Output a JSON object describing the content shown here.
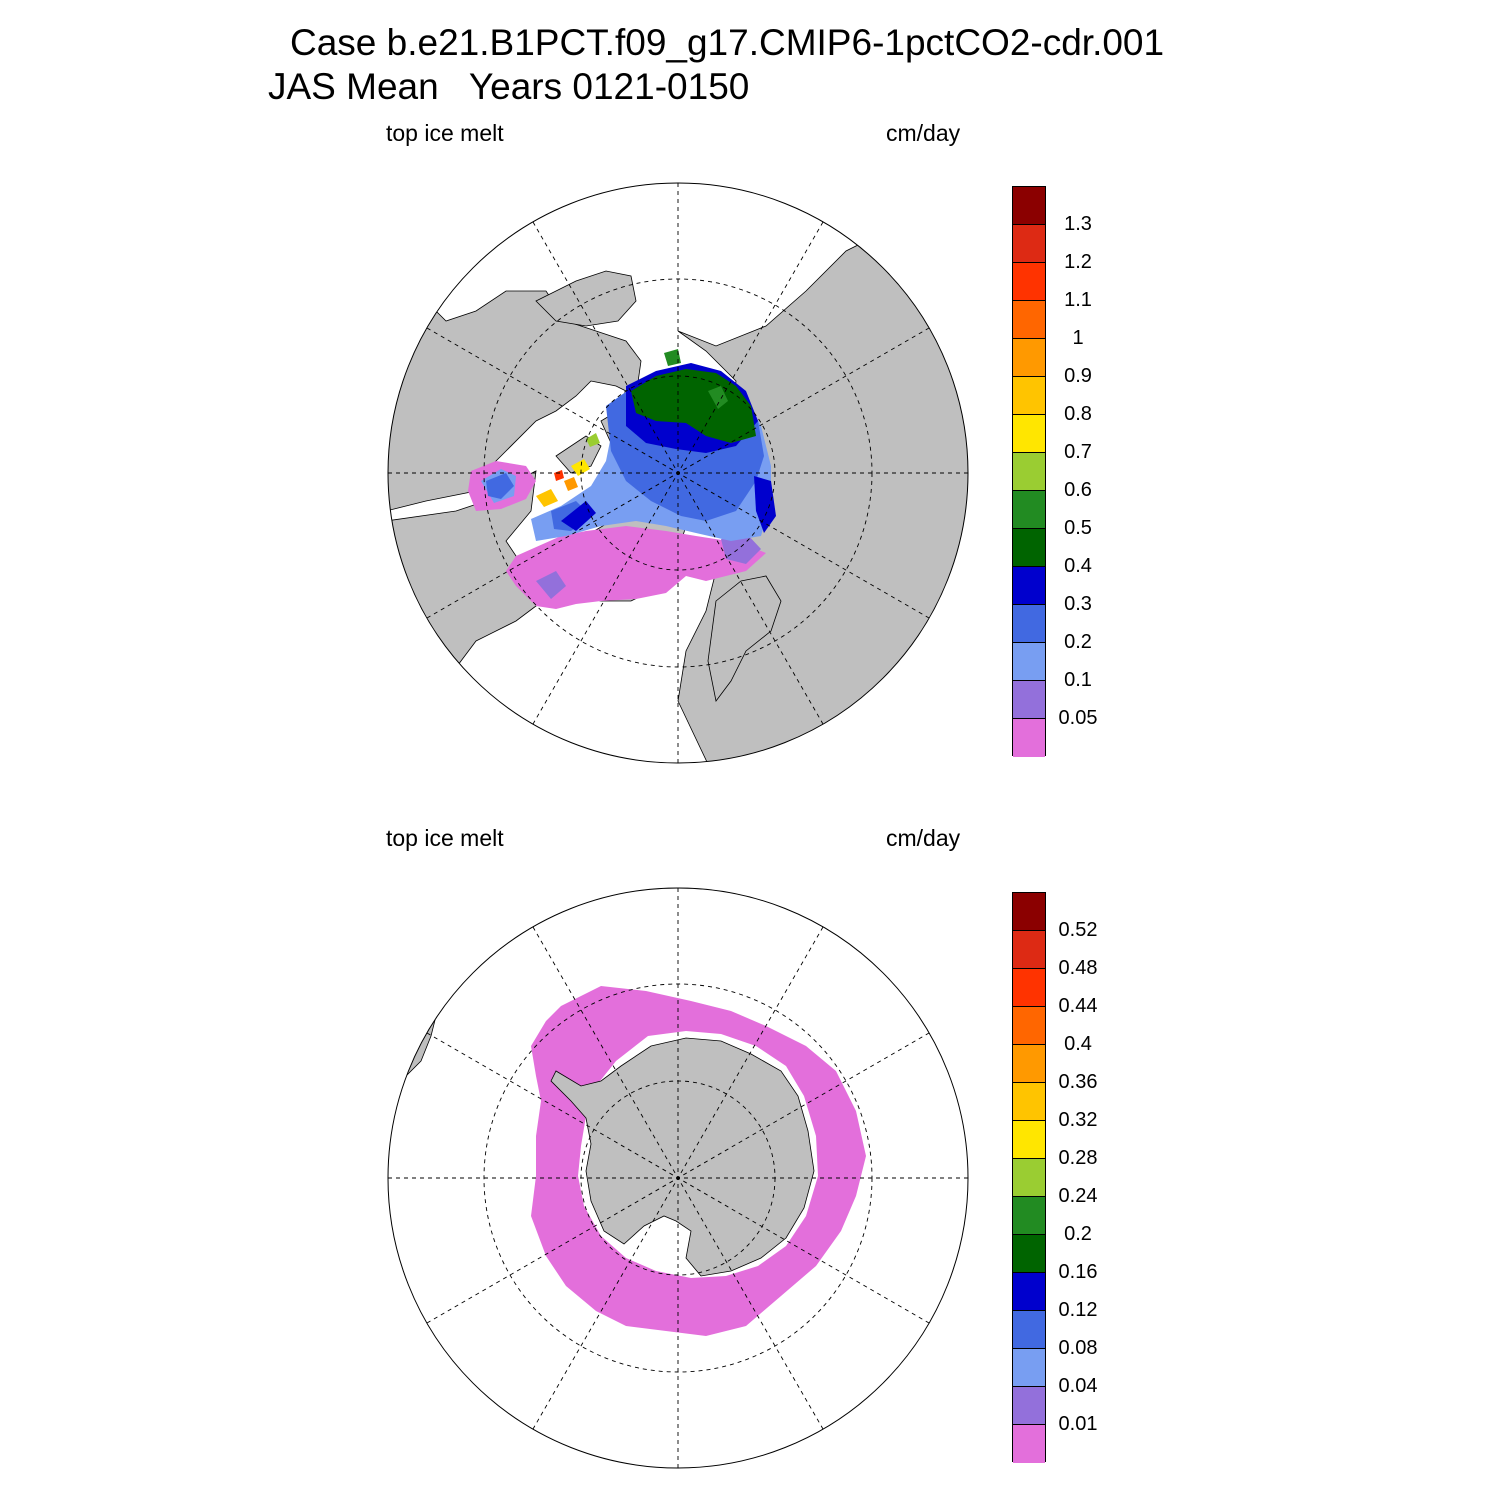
{
  "title_line1": "Case b.e21.B1PCT.f09_g17.CMIP6-1pctCO2-cdr.001",
  "title_line2": "JAS Mean   Years 0121-0150",
  "colors": [
    "#e36fdb",
    "#9370db",
    "#789ef2",
    "#4169e1",
    "#0000cd",
    "#006400",
    "#228b22",
    "#9acd32",
    "#ffe600",
    "#ffc400",
    "#ff9900",
    "#ff6600",
    "#ff3300",
    "#dd2a14",
    "#8b0000"
  ],
  "panels": [
    {
      "id": "nh",
      "label_left": "top ice melt",
      "label_right": "cm/day",
      "colorbar_labels": [
        "1.3",
        "1.2",
        "1.1",
        "1",
        "0.9",
        "0.8",
        "0.7",
        "0.6",
        "0.5",
        "0.4",
        "0.3",
        "0.2",
        "0.1",
        "0.05"
      ]
    },
    {
      "id": "sh",
      "label_left": "top ice melt",
      "label_right": "cm/day",
      "colorbar_labels": [
        "0.52",
        "0.48",
        "0.44",
        "0.4",
        "0.36",
        "0.32",
        "0.28",
        "0.24",
        "0.2",
        "0.16",
        "0.12",
        "0.08",
        "0.04",
        "0.01"
      ]
    }
  ]
}
